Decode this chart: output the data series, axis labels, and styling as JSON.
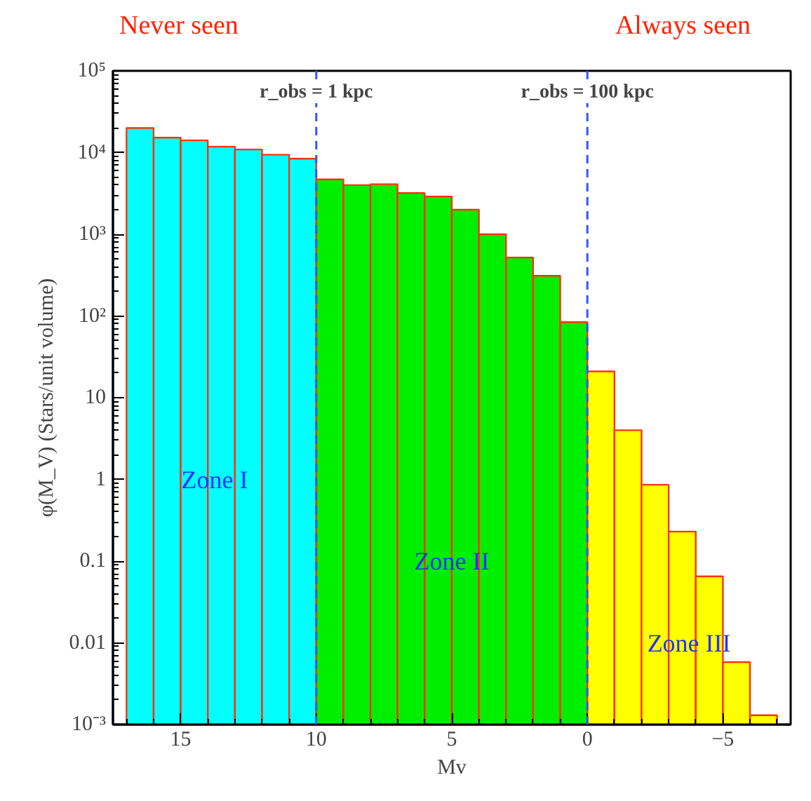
{
  "chart_data": {
    "type": "histogram",
    "xlabel": "Mv",
    "ylabel": "φ(M_V) (Stars/unit volume)",
    "bins": [
      17,
      16,
      15,
      14,
      13,
      12,
      11,
      10,
      9,
      8,
      7,
      6,
      5,
      4,
      3,
      2,
      1,
      0,
      -1,
      -2,
      -3,
      -4,
      -5,
      -6,
      -7
    ],
    "values": [
      20000,
      15200,
      14100,
      11800,
      10900,
      9400,
      8400,
      4700,
      4000,
      4100,
      3200,
      2900,
      2000,
      1000,
      520,
      310,
      84,
      21,
      4.0,
      0.86,
      0.23,
      0.065,
      0.0058,
      0.0013
    ],
    "color": "#ff3311",
    "colors": [
      "#00ffff",
      "#00ffff",
      "#00ffff",
      "#00ffff",
      "#00ffff",
      "#00ffff",
      "#00ffff",
      "#00ee00",
      "#00ee00",
      "#00ee00",
      "#00ee00",
      "#00ee00",
      "#00ee00",
      "#00ee00",
      "#00ee00",
      "#00ee00",
      "#00ee00",
      "#ffff00",
      "#ffff00",
      "#ffff00",
      "#ffff00",
      "#ffff00",
      "#ffff00",
      "#ffff00"
    ],
    "log": "y",
    "xlim": [
      17.5,
      -7.5
    ],
    "ylim": [
      0.001,
      100000
    ],
    "xticks": [
      15,
      10,
      5,
      0,
      {
        "value": -5,
        "label": "−5"
      }
    ],
    "yticks": [
      {
        "value": 0.001,
        "label": "10⁻³"
      },
      0.01,
      0.1,
      1,
      10,
      {
        "value": 100,
        "label": "10²"
      },
      {
        "value": 1000,
        "label": "10³"
      },
      {
        "value": 10000,
        "label": "10⁴"
      },
      {
        "value": 100000,
        "label": "10⁵"
      }
    ],
    "ref_lines": [
      {
        "axis": "x",
        "value": 10,
        "color": "#3355ff",
        "line_style": "dashed"
      },
      {
        "axis": "x",
        "value": 0,
        "color": "#3355ff",
        "line_style": "dashed"
      }
    ],
    "annotations": [
      "Never seen",
      "Always seen",
      "r_obs = 1 kpc",
      "r_obs = 100 kpc",
      "Zone I",
      "Zone II",
      "Zone III"
    ],
    "grid": false
  }
}
